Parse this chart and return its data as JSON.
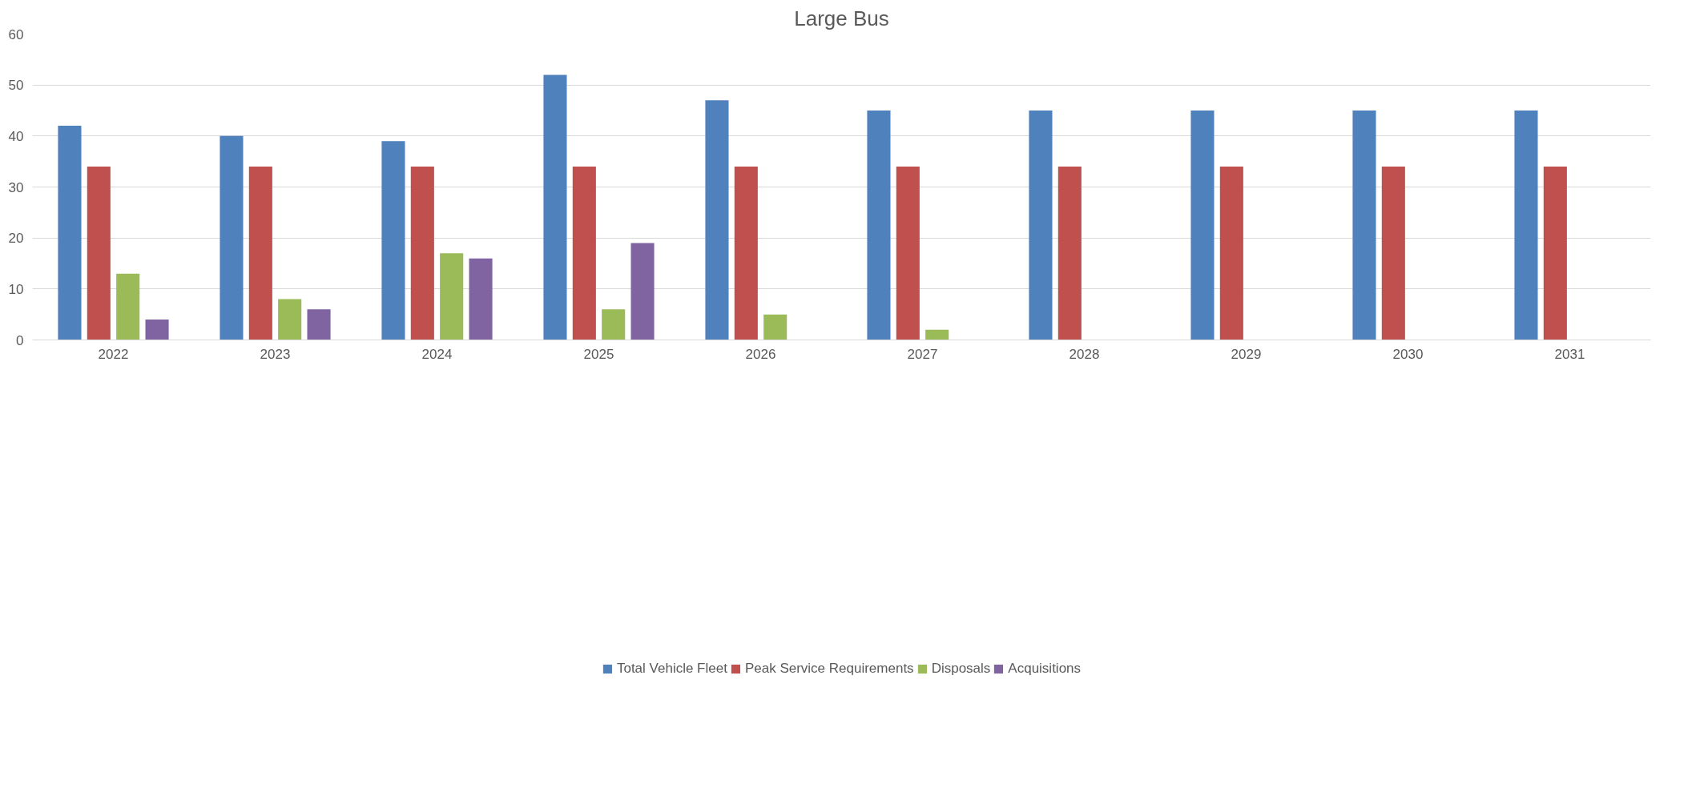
{
  "chart_data": {
    "type": "bar",
    "title": "Large Bus",
    "categories": [
      "2022",
      "2023",
      "2024",
      "2025",
      "2026",
      "2027",
      "2028",
      "2029",
      "2030",
      "2031"
    ],
    "series": [
      {
        "name": "Total Vehicle Fleet",
        "color": "#4f81bd",
        "values": [
          42,
          40,
          39,
          52,
          47,
          45,
          45,
          45,
          45,
          45
        ]
      },
      {
        "name": "Peak Service Requirements",
        "color": "#c0504d",
        "values": [
          34,
          34,
          34,
          34,
          34,
          34,
          34,
          34,
          34,
          34
        ]
      },
      {
        "name": "Disposals",
        "color": "#9bbb59",
        "values": [
          13,
          8,
          17,
          6,
          5,
          2,
          0,
          0,
          0,
          0
        ]
      },
      {
        "name": "Acquisitions",
        "color": "#8064a2",
        "values": [
          4,
          6,
          16,
          19,
          0,
          0,
          0,
          0,
          0,
          0
        ]
      }
    ],
    "ylim": [
      0,
      60
    ],
    "yticks": [
      0,
      10,
      20,
      30,
      40,
      50,
      60
    ],
    "grid": "y",
    "legend": "bottom"
  }
}
